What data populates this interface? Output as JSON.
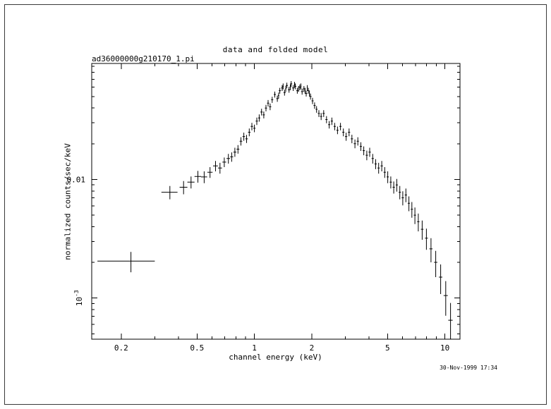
{
  "window": {
    "background": "#ffffff",
    "border_color": "#3a3a3a",
    "plot_color": "#000000"
  },
  "chart_data": {
    "type": "scatter",
    "style": "xspec-error-bars",
    "title": "data and folded model",
    "dataset_label": "ad36000000g210170_1.pi",
    "xlabel": "channel energy (keV)",
    "ylabel": "normalized counts/sec/keV",
    "timestamp": "30-Nov-1999 17:34",
    "x_scale": "log",
    "y_scale": "log",
    "grid": false,
    "legend": false,
    "xlim": [
      0.14,
      12
    ],
    "ylim": [
      0.00045,
      0.095
    ],
    "x_ticks": [
      {
        "v": 0.2,
        "label": "0.2"
      },
      {
        "v": 0.5,
        "label": "0.5"
      },
      {
        "v": 1,
        "label": "1"
      },
      {
        "v": 2,
        "label": "2"
      },
      {
        "v": 5,
        "label": "5"
      },
      {
        "v": 10,
        "label": "10"
      }
    ],
    "y_ticks": [
      {
        "v": 0.001,
        "base": "10",
        "exp": "-3"
      },
      {
        "v": 0.01,
        "label": "0.01"
      }
    ],
    "points_format": [
      "energy_keV",
      "bin_halfwidth_keV",
      "counts_per_sec_keV",
      "counts_error"
    ],
    "points": [
      [
        0.225,
        0.075,
        0.00205,
        0.0004
      ],
      [
        0.36,
        0.035,
        0.0078,
        0.001
      ],
      [
        0.425,
        0.02,
        0.0086,
        0.0011
      ],
      [
        0.465,
        0.02,
        0.0095,
        0.0011
      ],
      [
        0.505,
        0.02,
        0.0106,
        0.0012
      ],
      [
        0.545,
        0.02,
        0.0105,
        0.0012
      ],
      [
        0.585,
        0.018,
        0.0115,
        0.0012
      ],
      [
        0.625,
        0.018,
        0.013,
        0.0013
      ],
      [
        0.66,
        0.016,
        0.0125,
        0.0013
      ],
      [
        0.695,
        0.016,
        0.014,
        0.0013
      ],
      [
        0.73,
        0.016,
        0.015,
        0.0014
      ],
      [
        0.76,
        0.014,
        0.0155,
        0.0014
      ],
      [
        0.79,
        0.014,
        0.017,
        0.0015
      ],
      [
        0.82,
        0.014,
        0.018,
        0.0015
      ],
      [
        0.85,
        0.014,
        0.021,
        0.0017
      ],
      [
        0.88,
        0.014,
        0.023,
        0.0018
      ],
      [
        0.91,
        0.014,
        0.022,
        0.0017
      ],
      [
        0.94,
        0.014,
        0.025,
        0.0019
      ],
      [
        0.97,
        0.014,
        0.028,
        0.002
      ],
      [
        1.0,
        0.014,
        0.027,
        0.002
      ],
      [
        1.03,
        0.014,
        0.031,
        0.0022
      ],
      [
        1.06,
        0.014,
        0.033,
        0.0023
      ],
      [
        1.09,
        0.015,
        0.037,
        0.0024
      ],
      [
        1.12,
        0.015,
        0.035,
        0.0023
      ],
      [
        1.15,
        0.015,
        0.04,
        0.0025
      ],
      [
        1.18,
        0.015,
        0.044,
        0.0027
      ],
      [
        1.21,
        0.016,
        0.041,
        0.0026
      ],
      [
        1.24,
        0.016,
        0.047,
        0.0028
      ],
      [
        1.28,
        0.017,
        0.052,
        0.003
      ],
      [
        1.32,
        0.017,
        0.048,
        0.0029
      ],
      [
        1.34,
        0.01,
        0.051,
        0.003
      ],
      [
        1.36,
        0.018,
        0.056,
        0.0032
      ],
      [
        1.4,
        0.018,
        0.059,
        0.0033
      ],
      [
        1.415,
        0.01,
        0.061,
        0.0034
      ],
      [
        1.44,
        0.019,
        0.054,
        0.0031
      ],
      [
        1.46,
        0.01,
        0.058,
        0.0033
      ],
      [
        1.48,
        0.019,
        0.062,
        0.0034
      ],
      [
        1.52,
        0.02,
        0.057,
        0.0032
      ],
      [
        1.545,
        0.01,
        0.06,
        0.0033
      ],
      [
        1.56,
        0.02,
        0.064,
        0.0035
      ],
      [
        1.6,
        0.021,
        0.059,
        0.0033
      ],
      [
        1.625,
        0.01,
        0.063,
        0.0035
      ],
      [
        1.64,
        0.021,
        0.061,
        0.0034
      ],
      [
        1.68,
        0.022,
        0.056,
        0.0032
      ],
      [
        1.705,
        0.01,
        0.058,
        0.0033
      ],
      [
        1.73,
        0.022,
        0.06,
        0.0033
      ],
      [
        1.755,
        0.01,
        0.061,
        0.0034
      ],
      [
        1.78,
        0.023,
        0.055,
        0.0031
      ],
      [
        1.82,
        0.023,
        0.058,
        0.0032
      ],
      [
        1.845,
        0.01,
        0.056,
        0.0032
      ],
      [
        1.87,
        0.024,
        0.053,
        0.003
      ],
      [
        1.895,
        0.01,
        0.059,
        0.0033
      ],
      [
        1.92,
        0.024,
        0.056,
        0.0032
      ],
      [
        1.945,
        0.01,
        0.053,
        0.003
      ],
      [
        1.97,
        0.025,
        0.05,
        0.0029
      ],
      [
        2.02,
        0.025,
        0.046,
        0.0028
      ],
      [
        2.07,
        0.026,
        0.042,
        0.0026
      ],
      [
        2.12,
        0.026,
        0.039,
        0.0025
      ],
      [
        2.18,
        0.027,
        0.036,
        0.0024
      ],
      [
        2.24,
        0.028,
        0.034,
        0.0023
      ],
      [
        2.31,
        0.03,
        0.036,
        0.0024
      ],
      [
        2.39,
        0.031,
        0.032,
        0.0022
      ],
      [
        2.47,
        0.032,
        0.029,
        0.0021
      ],
      [
        2.55,
        0.033,
        0.031,
        0.0022
      ],
      [
        2.64,
        0.035,
        0.028,
        0.002
      ],
      [
        2.73,
        0.036,
        0.026,
        0.0019
      ],
      [
        2.83,
        0.038,
        0.028,
        0.002
      ],
      [
        2.93,
        0.039,
        0.025,
        0.0019
      ],
      [
        3.03,
        0.041,
        0.023,
        0.0018
      ],
      [
        3.14,
        0.042,
        0.025,
        0.0019
      ],
      [
        3.25,
        0.044,
        0.022,
        0.0018
      ],
      [
        3.37,
        0.046,
        0.02,
        0.0017
      ],
      [
        3.49,
        0.047,
        0.021,
        0.0017
      ],
      [
        3.62,
        0.049,
        0.019,
        0.0016
      ],
      [
        3.75,
        0.051,
        0.0175,
        0.0015
      ],
      [
        3.89,
        0.053,
        0.016,
        0.0015
      ],
      [
        4.03,
        0.055,
        0.017,
        0.0015
      ],
      [
        4.18,
        0.057,
        0.015,
        0.0014
      ],
      [
        4.33,
        0.059,
        0.0135,
        0.0013
      ],
      [
        4.49,
        0.061,
        0.0125,
        0.0013
      ],
      [
        4.66,
        0.064,
        0.013,
        0.0013
      ],
      [
        4.83,
        0.066,
        0.0115,
        0.0012
      ],
      [
        5.01,
        0.068,
        0.0105,
        0.0012
      ],
      [
        5.2,
        0.071,
        0.0095,
        0.0011
      ],
      [
        5.39,
        0.074,
        0.0086,
        0.001
      ],
      [
        5.59,
        0.076,
        0.009,
        0.0011
      ],
      [
        5.8,
        0.079,
        0.0078,
        0.001
      ],
      [
        6.01,
        0.082,
        0.007,
        0.00095
      ],
      [
        6.24,
        0.085,
        0.0074,
        0.00098
      ],
      [
        6.47,
        0.088,
        0.0063,
        0.0009
      ],
      [
        6.71,
        0.092,
        0.0056,
        0.00085
      ],
      [
        6.96,
        0.095,
        0.005,
        0.0008
      ],
      [
        7.25,
        0.1,
        0.0044,
        0.00075
      ],
      [
        7.6,
        0.12,
        0.0038,
        0.0007
      ],
      [
        8.0,
        0.14,
        0.0032,
        0.00065
      ],
      [
        8.45,
        0.16,
        0.0026,
        0.0006
      ],
      [
        8.95,
        0.18,
        0.002,
        0.0005
      ],
      [
        9.5,
        0.2,
        0.0015,
        0.00042
      ],
      [
        10.1,
        0.25,
        0.00105,
        0.00034
      ],
      [
        10.7,
        0.28,
        0.00065,
        0.00026
      ]
    ]
  }
}
